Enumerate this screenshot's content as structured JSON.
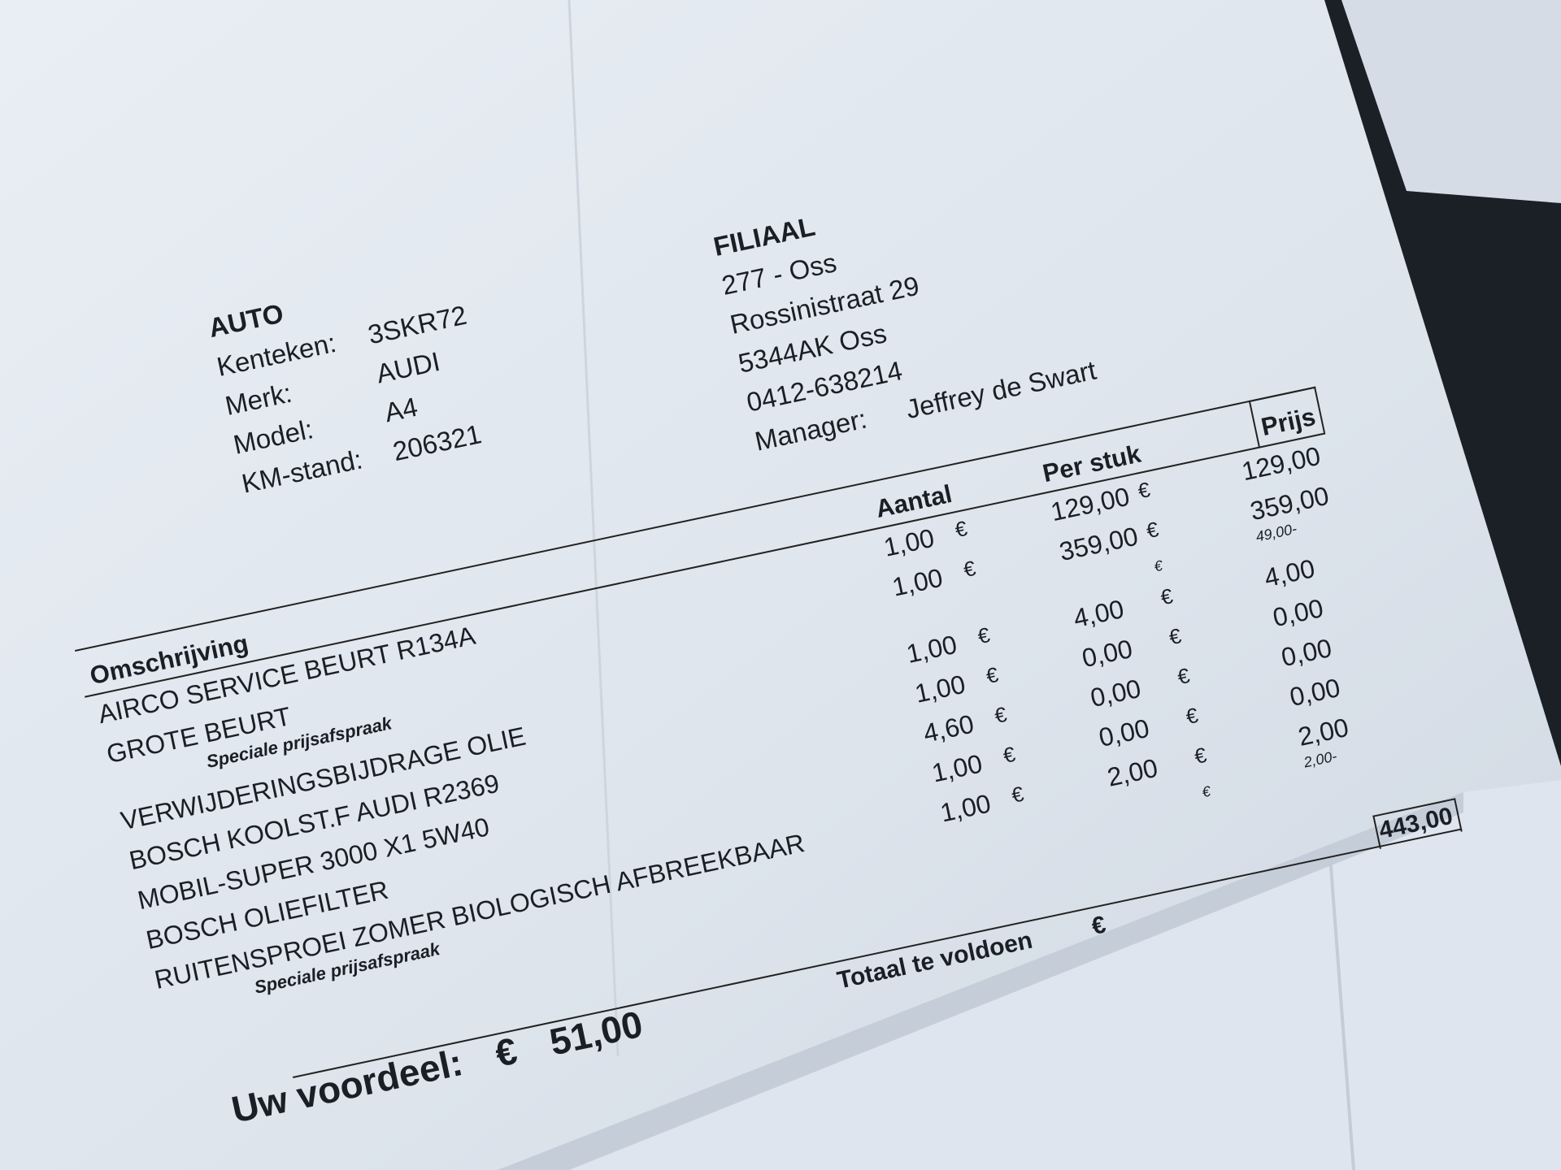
{
  "auto": {
    "heading": "AUTO",
    "fields": [
      {
        "label": "Kenteken:",
        "value": "3SKR72"
      },
      {
        "label": "Merk:",
        "value": "AUDI"
      },
      {
        "label": "Model:",
        "value": "A4"
      },
      {
        "label": "KM-stand:",
        "value": "206321"
      }
    ]
  },
  "filiaal": {
    "heading": "FILIAAL",
    "lines": [
      "277 - Oss",
      "Rossinistraat 29",
      "5344AK Oss",
      "0412-638214"
    ],
    "manager_label": "Manager:",
    "manager": "Jeffrey de Swart"
  },
  "table": {
    "headers": {
      "description": "Omschrijving",
      "aantal": "Aantal",
      "per_stuk": "Per stuk",
      "prijs": "Prijs"
    },
    "currency": "€",
    "rows": [
      {
        "description": "AIRCO SERVICE BEURT R134A",
        "aantal": "1,00",
        "per_stuk": "129,00",
        "prijs": "129,00"
      },
      {
        "description": "GROTE BEURT",
        "aantal": "1,00",
        "per_stuk": "359,00",
        "prijs": "359,00"
      },
      {
        "description": "Speciale prijsafspraak",
        "discount": "49,00-"
      },
      {
        "description": "VERWIJDERINGSBIJDRAGE OLIE",
        "aantal": "1,00",
        "per_stuk": "4,00",
        "prijs": "4,00"
      },
      {
        "description": "BOSCH KOOLST.F AUDI R2369",
        "aantal": "1,00",
        "per_stuk": "0,00",
        "prijs": "0,00"
      },
      {
        "description": "MOBIL-SUPER 3000 X1 5W40",
        "aantal": "4,60",
        "per_stuk": "0,00",
        "prijs": "0,00"
      },
      {
        "description": "BOSCH OLIEFILTER",
        "aantal": "1,00",
        "per_stuk": "0,00",
        "prijs": "0,00"
      },
      {
        "description": "RUITENSPROEI ZOMER BIOLOGISCH AFBREEKBAAR",
        "aantal": "1,00",
        "per_stuk": "2,00",
        "prijs": "2,00"
      },
      {
        "description": "Speciale prijsafspraak",
        "discount": "2,00-"
      }
    ]
  },
  "total": {
    "label": "Totaal te voldoen",
    "currency": "€",
    "value": "443,00"
  },
  "voordeel": {
    "label": "Uw voordeel:",
    "currency": "€",
    "value": "51,00"
  },
  "colors": {
    "paper": "#dfe6ee",
    "ink": "#1a1f26",
    "background": "#1b2026"
  }
}
